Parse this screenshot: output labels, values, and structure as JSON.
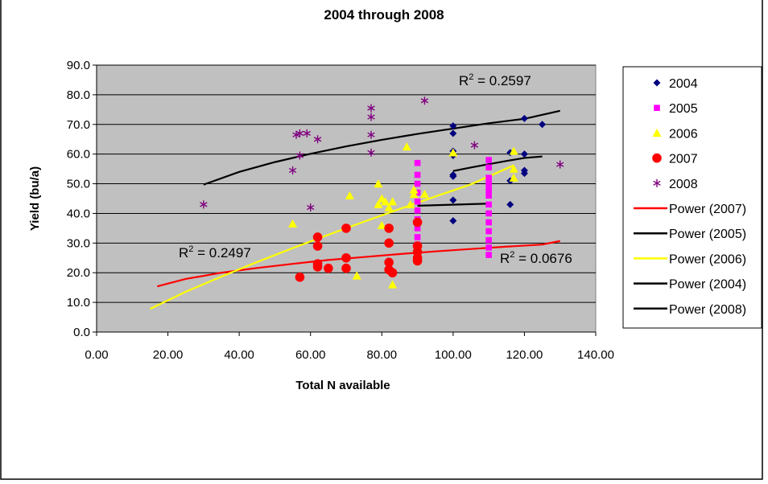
{
  "chart_data": {
    "type": "scatter",
    "title": "2004 through 2008",
    "xlabel": "Total N available",
    "ylabel": "Yield (bu/a)",
    "xlim": [
      0,
      140
    ],
    "ylim": [
      0,
      90
    ],
    "x_ticks": [
      "0.00",
      "20.00",
      "40.00",
      "60.00",
      "80.00",
      "100.00",
      "120.00",
      "140.00"
    ],
    "y_ticks": [
      "0.0",
      "10.0",
      "20.0",
      "30.0",
      "40.0",
      "50.0",
      "60.0",
      "70.0",
      "80.0",
      "90.0"
    ],
    "grid": "horizontal",
    "legend_position": "right",
    "plot_background": "#c0c0c0",
    "series": [
      {
        "name": "2004",
        "marker": "diamond",
        "color": "#000080",
        "points": [
          [
            100,
            69.5
          ],
          [
            100,
            67
          ],
          [
            100,
            61
          ],
          [
            100,
            59.5
          ],
          [
            100,
            53
          ],
          [
            100,
            52.5
          ],
          [
            100,
            44.5
          ],
          [
            100,
            37.5
          ],
          [
            116,
            60.5
          ],
          [
            116,
            51
          ],
          [
            116,
            43
          ],
          [
            120,
            72
          ],
          [
            120,
            60
          ],
          [
            120,
            54.5
          ],
          [
            120,
            53.5
          ],
          [
            125,
            70
          ]
        ]
      },
      {
        "name": "2005",
        "marker": "square",
        "color": "#ff00ff",
        "points": [
          [
            90,
            57
          ],
          [
            90,
            53
          ],
          [
            90,
            50
          ],
          [
            90,
            47
          ],
          [
            90,
            44
          ],
          [
            90,
            41
          ],
          [
            90,
            38
          ],
          [
            90,
            35
          ],
          [
            90,
            32
          ],
          [
            90,
            29.5
          ],
          [
            110,
            58
          ],
          [
            110,
            55.5
          ],
          [
            110,
            52
          ],
          [
            110,
            50
          ],
          [
            110,
            48
          ],
          [
            110,
            46
          ],
          [
            110,
            43
          ],
          [
            110,
            40
          ],
          [
            110,
            37
          ],
          [
            110,
            34
          ],
          [
            110,
            31
          ],
          [
            110,
            28.5
          ],
          [
            110,
            26
          ]
        ]
      },
      {
        "name": "2006",
        "marker": "triangle",
        "color": "#ffff00",
        "points": [
          [
            55,
            36.5
          ],
          [
            71,
            46
          ],
          [
            73,
            19
          ],
          [
            79,
            50
          ],
          [
            79,
            43
          ],
          [
            80,
            45
          ],
          [
            80,
            36
          ],
          [
            81,
            44
          ],
          [
            82,
            42
          ],
          [
            83,
            44
          ],
          [
            83,
            16
          ],
          [
            87,
            62.5
          ],
          [
            88,
            43
          ],
          [
            89,
            48
          ],
          [
            89,
            46.5
          ],
          [
            92,
            46.5
          ],
          [
            100,
            60.5
          ],
          [
            117,
            61
          ],
          [
            117,
            55
          ],
          [
            117,
            52
          ]
        ]
      },
      {
        "name": "2007",
        "marker": "circle",
        "color": "#ff0000",
        "points": [
          [
            57,
            18.5
          ],
          [
            62,
            32
          ],
          [
            62,
            29
          ],
          [
            62,
            23
          ],
          [
            62,
            22
          ],
          [
            65,
            21.5
          ],
          [
            70,
            35
          ],
          [
            70,
            25
          ],
          [
            70,
            21.5
          ],
          [
            82,
            35
          ],
          [
            82,
            30
          ],
          [
            82,
            23.5
          ],
          [
            82,
            21
          ],
          [
            83,
            20
          ],
          [
            90,
            37
          ],
          [
            90,
            29
          ],
          [
            90,
            27
          ],
          [
            90,
            25
          ],
          [
            90,
            24
          ]
        ]
      },
      {
        "name": "2008",
        "marker": "asterisk",
        "color": "#800080",
        "points": [
          [
            30,
            43
          ],
          [
            55,
            54.5
          ],
          [
            56,
            66.5
          ],
          [
            57,
            67
          ],
          [
            57,
            59.5
          ],
          [
            59,
            67
          ],
          [
            60,
            42
          ],
          [
            62,
            65
          ],
          [
            77,
            75.5
          ],
          [
            77,
            72.5
          ],
          [
            77,
            66.5
          ],
          [
            77,
            60.5
          ],
          [
            92,
            78
          ],
          [
            106,
            63
          ],
          [
            130,
            56.5
          ]
        ]
      }
    ],
    "trendlines": [
      {
        "name": "Power (2007)",
        "color": "#ff0000",
        "x": [
          17,
          25,
          35,
          45,
          55,
          65,
          75,
          85,
          95,
          105,
          115,
          125,
          130
        ],
        "y": [
          15.4,
          17.9,
          20.0,
          21.6,
          23.0,
          24.3,
          25.3,
          26.3,
          27.2,
          28.0,
          28.8,
          29.5,
          30.7
        ]
      },
      {
        "name": "Power (2005)",
        "color": "#000000",
        "x": [
          90,
          110
        ],
        "y": [
          42.6,
          43.3
        ]
      },
      {
        "name": "Power (2006)",
        "color": "#ffff00",
        "x": [
          15,
          25,
          35,
          45,
          55,
          65,
          75,
          85,
          95,
          105,
          117
        ],
        "y": [
          7.8,
          13.6,
          18.7,
          23.6,
          28.3,
          32.8,
          37.2,
          41.5,
          45.7,
          49.8,
          56.2
        ]
      },
      {
        "name": "Power (2004)",
        "color": "#000000",
        "x": [
          100,
          105,
          110,
          115,
          120,
          125
        ],
        "y": [
          54.3,
          55.5,
          56.6,
          57.7,
          58.7,
          59.2
        ]
      },
      {
        "name": "Power (2008)",
        "color": "#000000",
        "x": [
          30,
          40,
          50,
          60,
          70,
          80,
          90,
          100,
          110,
          120,
          130
        ],
        "y": [
          49.7,
          54.0,
          57.3,
          60.1,
          62.6,
          64.8,
          66.8,
          68.6,
          70.4,
          71.9,
          74.6
        ]
      }
    ],
    "annotations": [
      {
        "id": "r2_2008",
        "text": "R",
        "sup": "2",
        "rest": " = 0.2597"
      },
      {
        "id": "r2_2006",
        "text": "R",
        "sup": "2",
        "rest": " = 0.2497"
      },
      {
        "id": "r2_2007",
        "text": "R",
        "sup": "2",
        "rest": " = 0.0676"
      }
    ]
  }
}
